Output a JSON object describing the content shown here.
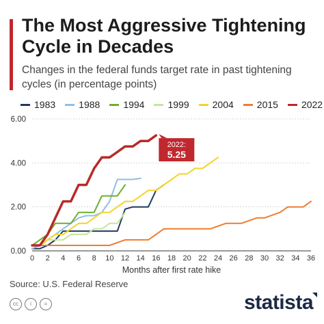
{
  "header": {
    "title": "The Most Aggressive Tightening Cycle in Decades",
    "subtitle": "Changes in the federal funds target rate in past tightening cycles (in percentage points)"
  },
  "footer": {
    "source": "Source: U.S. Federal Reserve",
    "logo": "statista",
    "license_icons": [
      "cc-icon",
      "by-icon",
      "nd-icon"
    ]
  },
  "chart_data": {
    "type": "line",
    "title": "The Most Aggressive Tightening Cycle in Decades",
    "subtitle": "Changes in the federal funds target rate in past tightening cycles (in percentage points)",
    "xlabel": "Months after first rate hike",
    "ylabel": "",
    "xlim": [
      0,
      36
    ],
    "ylim": [
      0,
      6
    ],
    "x_ticks": [
      0,
      2,
      4,
      6,
      8,
      10,
      12,
      14,
      16,
      18,
      20,
      22,
      24,
      26,
      28,
      30,
      32,
      34,
      36
    ],
    "y_ticks": [
      0,
      2,
      4,
      6
    ],
    "y_tick_labels": [
      "0.00",
      "2.00",
      "4.00",
      "6.00"
    ],
    "grid": true,
    "legend_position": "top",
    "annotation": {
      "series": "2022",
      "label": "2022:",
      "value_label": "5.25",
      "x": 16,
      "y": 5.25
    },
    "series": [
      {
        "name": "1983",
        "color": "#1f3a5f",
        "width": 2,
        "x": [
          0,
          1,
          2,
          3,
          4,
          5,
          6,
          7,
          8,
          9,
          10,
          11,
          12,
          13,
          14,
          15,
          16,
          17
        ],
        "y": [
          0.1,
          0.1,
          0.25,
          0.5,
          0.9,
          0.9,
          0.9,
          0.9,
          0.9,
          0.9,
          0.9,
          0.9,
          1.9,
          2.0,
          2.0,
          2.0,
          2.75,
          3.0
        ]
      },
      {
        "name": "1988",
        "color": "#8fbfe6",
        "width": 2,
        "x": [
          0,
          1,
          2,
          3,
          4,
          5,
          6,
          7,
          8,
          9,
          10,
          11,
          12,
          13,
          14
        ],
        "y": [
          0.1,
          0.25,
          0.5,
          0.75,
          1.0,
          1.25,
          1.5,
          1.6,
          1.6,
          1.75,
          2.25,
          3.25,
          3.25,
          3.25,
          3.3
        ]
      },
      {
        "name": "1994",
        "color": "#6fae2e",
        "width": 2,
        "x": [
          0,
          1,
          2,
          3,
          4,
          5,
          6,
          7,
          8,
          9,
          10,
          11,
          12
        ],
        "y": [
          0.25,
          0.5,
          0.75,
          1.25,
          1.25,
          1.25,
          1.75,
          1.75,
          1.75,
          2.5,
          2.5,
          2.5,
          3.0
        ]
      },
      {
        "name": "1999",
        "color": "#c5e59a",
        "width": 2,
        "x": [
          0,
          1,
          2,
          3,
          4,
          5,
          6,
          7,
          8,
          9,
          10,
          11,
          12
        ],
        "y": [
          0.25,
          0.25,
          0.5,
          0.5,
          0.5,
          0.75,
          0.75,
          0.75,
          1.0,
          1.0,
          1.25,
          1.25,
          1.75
        ]
      },
      {
        "name": "2004",
        "color": "#f5d327",
        "width": 2,
        "x": [
          0,
          1,
          2,
          3,
          4,
          5,
          6,
          7,
          8,
          9,
          10,
          11,
          12,
          13,
          14,
          15,
          16,
          17,
          18,
          19,
          20,
          21,
          22,
          23,
          24
        ],
        "y": [
          0.25,
          0.25,
          0.5,
          0.75,
          0.75,
          1.0,
          1.25,
          1.25,
          1.5,
          1.75,
          1.75,
          2.0,
          2.25,
          2.25,
          2.5,
          2.75,
          2.75,
          3.0,
          3.25,
          3.5,
          3.5,
          3.75,
          3.75,
          4.0,
          4.25
        ]
      },
      {
        "name": "2015",
        "color": "#ee7d2f",
        "width": 2,
        "x": [
          0,
          2,
          4,
          6,
          8,
          10,
          12,
          13,
          15,
          16,
          17,
          19,
          21,
          23,
          25,
          27,
          29,
          30,
          32,
          33,
          35,
          36
        ],
        "y": [
          0.25,
          0.25,
          0.25,
          0.25,
          0.25,
          0.25,
          0.5,
          0.5,
          0.5,
          0.75,
          1.0,
          1.0,
          1.0,
          1.0,
          1.25,
          1.25,
          1.5,
          1.5,
          1.75,
          2.0,
          2.0,
          2.25
        ]
      },
      {
        "name": "2022",
        "color": "#b82a26",
        "width": 3.5,
        "x": [
          0,
          1,
          2,
          3,
          4,
          5,
          6,
          7,
          8,
          9,
          10,
          11,
          12,
          13,
          14,
          15,
          16
        ],
        "y": [
          0.25,
          0.25,
          0.75,
          1.5,
          2.25,
          2.25,
          3.0,
          3.0,
          3.75,
          4.25,
          4.25,
          4.5,
          4.75,
          4.75,
          5.0,
          5.0,
          5.25
        ]
      }
    ]
  }
}
